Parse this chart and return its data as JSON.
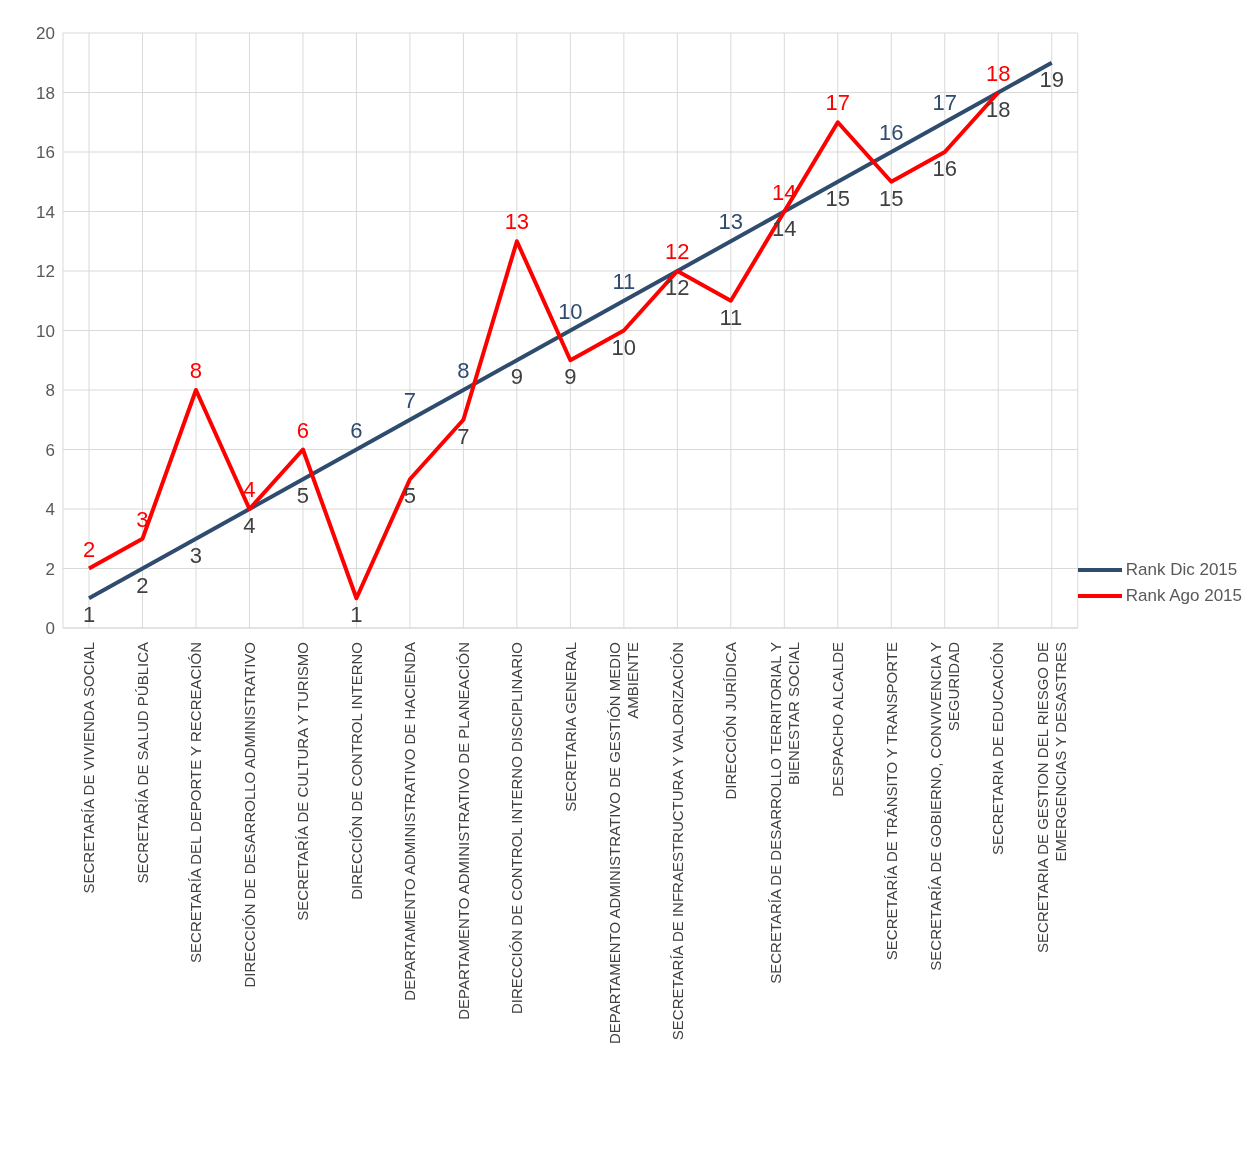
{
  "chart_data": {
    "type": "line",
    "categories": [
      "SECRETARÍA DE VIVIENDA SOCIAL",
      "SECRETARÍA DE SALUD PÚBLICA",
      "SECRETARÍA DEL DEPORTE Y RECREACIÓN",
      "DIRECCIÓN DE DESARROLLO ADMINISTRATIVO",
      "SECRETARÍA DE CULTURA Y TURISMO",
      "DIRECCIÓN DE CONTROL INTERNO",
      "DEPARTAMENTO ADMINISTRATIVO DE HACIENDA",
      "DEPARTAMENTO ADMINISTRATIVO DE PLANEACIÓN",
      "DIRECCIÓN DE CONTROL INTERNO DISCIPLINARIO",
      "SECRETARIA GENERAL",
      "DEPARTAMENTO ADMINISTRATIVO DE GESTIÓN MEDIO AMBIENTE",
      "SECRETARÍA DE INFRAESTRUCTURA Y VALORIZACIÓN",
      "DIRECCIÓN JURÍDICA",
      "SECRETARÍA DE DESARROLLO TERRITORIAL Y BIENESTAR SOCIAL",
      "DESPACHO ALCALDE",
      "SECRETARÍA DE TRÁNSITO Y TRANSPORTE",
      "SECRETARÍA DE GOBIERNO, CONVIVENCIA Y SEGURIDAD",
      "SECRETARIA DE EDUCACIÓN",
      "SECRETARIA DE GESTION DEL RIESGO DE EMERGENCIAS Y DESASTRES"
    ],
    "series": [
      {
        "name": "Rank Dic 2015",
        "color": "#2f4b6e",
        "values": [
          1,
          2,
          3,
          4,
          5,
          6,
          7,
          8,
          9,
          10,
          11,
          12,
          13,
          14,
          15,
          16,
          17,
          18,
          19
        ]
      },
      {
        "name": "Rank Ago 2015",
        "color": "#ff0000",
        "values": [
          2,
          3,
          8,
          4,
          6,
          1,
          5,
          7,
          13,
          9,
          10,
          12,
          11,
          14,
          17,
          15,
          16,
          18,
          null
        ]
      }
    ],
    "ylim": [
      0,
      20
    ],
    "yticks": [
      0,
      2,
      4,
      6,
      8,
      10,
      12,
      14,
      16,
      18,
      20
    ],
    "grid": true,
    "legend": "right",
    "marker": "none",
    "line_style": "solid",
    "data_labels": true
  }
}
